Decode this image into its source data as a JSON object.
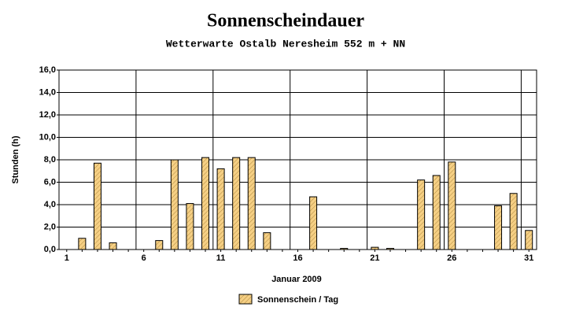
{
  "chart_data": {
    "type": "bar",
    "title": "Sonnenscheindauer",
    "subtitle": "Wetterwarte Ostalb Neresheim 552 m + NN",
    "ylabel": "Stunden  (h)",
    "xlabel": "Januar 2009",
    "categories": [
      "1",
      null,
      null,
      null,
      null,
      "6",
      null,
      null,
      null,
      null,
      "11",
      null,
      null,
      null,
      null,
      "16",
      null,
      null,
      null,
      null,
      "21",
      null,
      null,
      null,
      null,
      "26",
      null,
      null,
      null,
      null,
      "31"
    ],
    "series": [
      {
        "name": "Sonnenschein / Tag",
        "color": "#f5cf84",
        "values": [
          0,
          1.0,
          7.7,
          0.6,
          0,
          0,
          0.8,
          8.0,
          4.1,
          8.2,
          7.2,
          8.2,
          8.2,
          1.5,
          0,
          0,
          4.7,
          0,
          0.1,
          0,
          0.2,
          0.1,
          0,
          6.2,
          6.6,
          7.8,
          0,
          0,
          3.9,
          5.0,
          1.7
        ]
      }
    ],
    "ylim": [
      0,
      16
    ],
    "yticks": [
      {
        "value": 0,
        "label": "0,0"
      },
      {
        "value": 2,
        "label": "2,0"
      },
      {
        "value": 4,
        "label": "4,0"
      },
      {
        "value": 6,
        "label": "6,0"
      },
      {
        "value": 8,
        "label": "8,0"
      },
      {
        "value": 10,
        "label": "10,0"
      },
      {
        "value": 12,
        "label": "12,0"
      },
      {
        "value": 14,
        "label": "14,0"
      },
      {
        "value": 16,
        "label": "16,0"
      }
    ],
    "grid": true
  }
}
